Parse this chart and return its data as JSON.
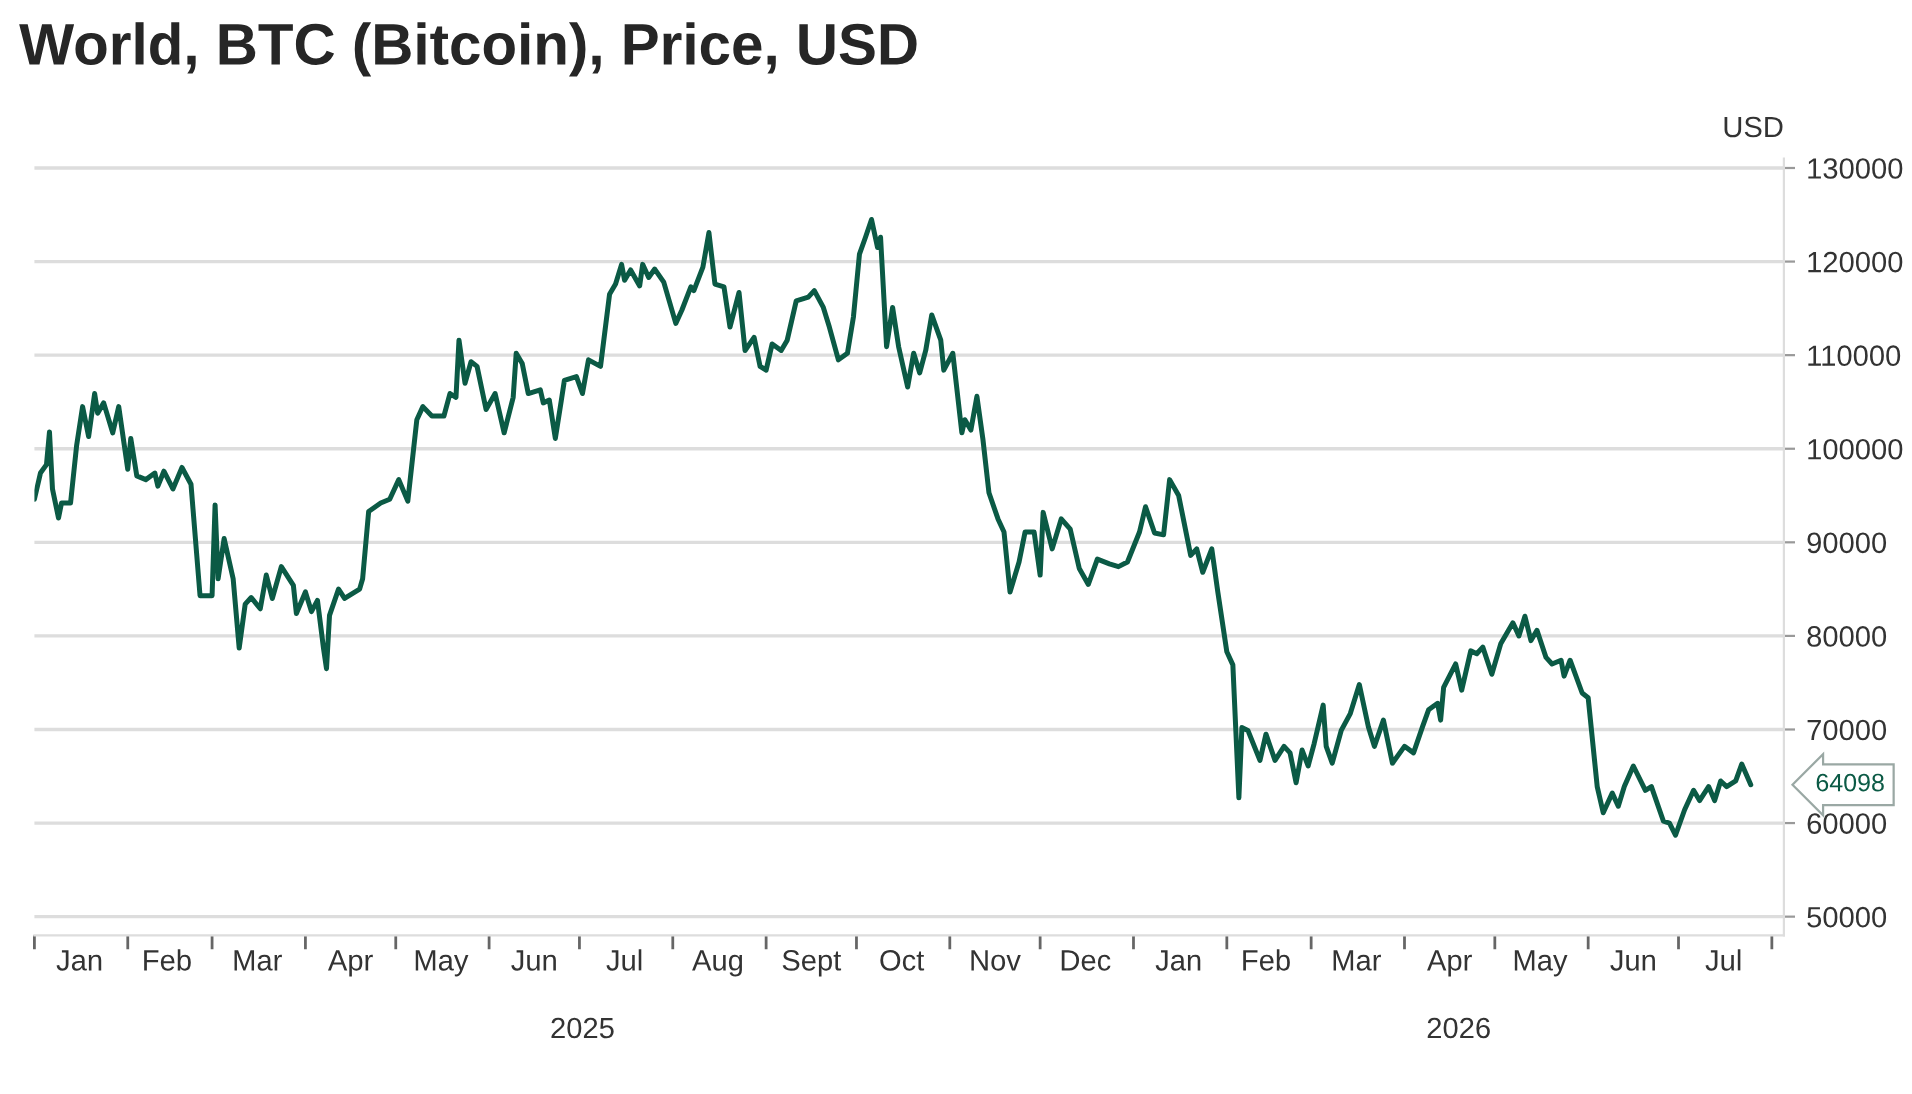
{
  "chart_data": {
    "type": "line",
    "title": "World, BTC (Bitcoin), Price, USD",
    "ylabel": "USD",
    "annotations": [
      "2025",
      "2026",
      "64098"
    ],
    "x": [
      "2025-01-01",
      "2025-01-03",
      "2025-01-05",
      "2025-01-06",
      "2025-01-07",
      "2025-01-09",
      "2025-01-10",
      "2025-01-13",
      "2025-01-15",
      "2025-01-17",
      "2025-01-19",
      "2025-01-21",
      "2025-01-22",
      "2025-01-24",
      "2025-01-27",
      "2025-01-29",
      "2025-02-01",
      "2025-02-02",
      "2025-02-04",
      "2025-02-07",
      "2025-02-10",
      "2025-02-11",
      "2025-02-13",
      "2025-02-16",
      "2025-02-19",
      "2025-02-22",
      "2025-02-25",
      "2025-03-01",
      "2025-03-02",
      "2025-03-03",
      "2025-03-05",
      "2025-03-08",
      "2025-03-10",
      "2025-03-12",
      "2025-03-14",
      "2025-03-17",
      "2025-03-19",
      "2025-03-21",
      "2025-03-24",
      "2025-03-28",
      "2025-03-29",
      "2025-04-01",
      "2025-04-03",
      "2025-04-05",
      "2025-04-07",
      "2025-04-08",
      "2025-04-09",
      "2025-04-12",
      "2025-04-14",
      "2025-04-19",
      "2025-04-20",
      "2025-04-22",
      "2025-04-26",
      "2025-04-29",
      "2025-05-02",
      "2025-05-05",
      "2025-05-08",
      "2025-05-10",
      "2025-05-13",
      "2025-05-17",
      "2025-05-19",
      "2025-05-21",
      "2025-05-22",
      "2025-05-24",
      "2025-05-26",
      "2025-05-28",
      "2025-05-31",
      "2025-06-03",
      "2025-06-06",
      "2025-06-09",
      "2025-06-10",
      "2025-06-12",
      "2025-06-14",
      "2025-06-18",
      "2025-06-19",
      "2025-06-21",
      "2025-06-23",
      "2025-06-25",
      "2025-06-26",
      "2025-06-30",
      "2025-07-02",
      "2025-07-04",
      "2025-07-08",
      "2025-07-11",
      "2025-07-13",
      "2025-07-15",
      "2025-07-16",
      "2025-07-18",
      "2025-07-21",
      "2025-07-22",
      "2025-07-24",
      "2025-07-26",
      "2025-07-29",
      "2025-08-02",
      "2025-08-04",
      "2025-08-07",
      "2025-08-08",
      "2025-08-11",
      "2025-08-13",
      "2025-08-15",
      "2025-08-18",
      "2025-08-20",
      "2025-08-23",
      "2025-08-25",
      "2025-08-28",
      "2025-08-30",
      "2025-09-01",
      "2025-09-03",
      "2025-09-06",
      "2025-09-08",
      "2025-09-11",
      "2025-09-15",
      "2025-09-17",
      "2025-09-20",
      "2025-09-22",
      "2025-09-25",
      "2025-09-28",
      "2025-09-30",
      "2025-10-02",
      "2025-10-04",
      "2025-10-06",
      "2025-10-08",
      "2025-10-09",
      "2025-10-11",
      "2025-10-13",
      "2025-10-15",
      "2025-10-18",
      "2025-10-20",
      "2025-10-22",
      "2025-10-24",
      "2025-10-26",
      "2025-10-29",
      "2025-10-30",
      "2025-11-02",
      "2025-11-05",
      "2025-11-06",
      "2025-11-08",
      "2025-11-10",
      "2025-11-12",
      "2025-11-14",
      "2025-11-17",
      "2025-11-19",
      "2025-11-21",
      "2025-11-24",
      "2025-11-26",
      "2025-11-29",
      "2025-12-01",
      "2025-12-02",
      "2025-12-05",
      "2025-12-08",
      "2025-12-11",
      "2025-12-14",
      "2025-12-17",
      "2025-12-20",
      "2025-12-24",
      "2025-12-27",
      "2025-12-30",
      "2026-01-03",
      "2026-01-05",
      "2026-01-08",
      "2026-01-11",
      "2026-01-13",
      "2026-01-16",
      "2026-01-20",
      "2026-01-22",
      "2026-01-24",
      "2026-01-27",
      "2026-01-29",
      "2026-02-01",
      "2026-02-03",
      "2026-02-05",
      "2026-02-06",
      "2026-02-08",
      "2026-02-12",
      "2026-02-14",
      "2026-02-17",
      "2026-02-20",
      "2026-02-22",
      "2026-02-24",
      "2026-02-26",
      "2026-02-28",
      "2026-03-02",
      "2026-03-05",
      "2026-03-06",
      "2026-03-08",
      "2026-03-11",
      "2026-03-14",
      "2026-03-17",
      "2026-03-20",
      "2026-03-22",
      "2026-03-25",
      "2026-03-28",
      "2026-04-01",
      "2026-04-04",
      "2026-04-07",
      "2026-04-09",
      "2026-04-12",
      "2026-04-13",
      "2026-04-14",
      "2026-04-18",
      "2026-04-20",
      "2026-04-23",
      "2026-04-25",
      "2026-04-27",
      "2026-04-30",
      "2026-05-03",
      "2026-05-07",
      "2026-05-09",
      "2026-05-11",
      "2026-05-13",
      "2026-05-15",
      "2026-05-18",
      "2026-05-20",
      "2026-05-23",
      "2026-05-24",
      "2026-05-26",
      "2026-05-30",
      "2026-06-01",
      "2026-06-04",
      "2026-06-06",
      "2026-06-09",
      "2026-06-11",
      "2026-06-13",
      "2026-06-16",
      "2026-06-20",
      "2026-06-22",
      "2026-06-26",
      "2026-06-28",
      "2026-06-30",
      "2026-07-03",
      "2026-07-06",
      "2026-07-08",
      "2026-07-11",
      "2026-07-13",
      "2026-07-15",
      "2026-07-17",
      "2026-07-20",
      "2026-07-22",
      "2026-07-25"
    ],
    "series": [
      {
        "color": "#0b5a45",
        "values": [
          94600,
          97400,
          98300,
          101800,
          95700,
          92600,
          94200,
          94200,
          100300,
          104500,
          101300,
          105900,
          103800,
          104900,
          101700,
          104500,
          97800,
          101100,
          97100,
          96700,
          97400,
          96000,
          97600,
          95700,
          98000,
          96200,
          84300,
          84300,
          94000,
          86100,
          90400,
          86100,
          78700,
          83400,
          84100,
          82900,
          86500,
          84000,
          87400,
          85400,
          82400,
          84700,
          82600,
          83800,
          78700,
          76500,
          82200,
          85000,
          84000,
          85000,
          86100,
          93300,
          94200,
          94600,
          96700,
          94400,
          103100,
          104500,
          103500,
          103500,
          105900,
          105500,
          111600,
          107000,
          109300,
          108800,
          104200,
          105900,
          101700,
          105500,
          110200,
          109100,
          105900,
          106300,
          104900,
          105200,
          101100,
          105200,
          107300,
          107700,
          105900,
          109500,
          108800,
          116500,
          117600,
          119700,
          118000,
          119100,
          117400,
          119700,
          118300,
          119200,
          117800,
          113400,
          114800,
          117300,
          116900,
          119400,
          123100,
          117600,
          117300,
          113000,
          116700,
          110500,
          111900,
          108800,
          108400,
          111200,
          110500,
          111600,
          115800,
          116200,
          116900,
          115100,
          113000,
          109500,
          110200,
          114100,
          120800,
          122600,
          124500,
          121500,
          122600,
          110900,
          115100,
          110900,
          106600,
          110200,
          108100,
          110500,
          114300,
          111600,
          108400,
          110200,
          101700,
          103100,
          102000,
          105600,
          101000,
          95300,
          92500,
          91100,
          84700,
          87900,
          91100,
          91100,
          86500,
          93200,
          89300,
          92500,
          91400,
          87200,
          85500,
          88200,
          87700,
          87400,
          87900,
          91100,
          93800,
          91000,
          90800,
          96700,
          95000,
          88600,
          89300,
          86800,
          89300,
          84700,
          78300,
          76900,
          62700,
          70200,
          69900,
          66700,
          69500,
          66700,
          68200,
          67500,
          64300,
          67800,
          66100,
          68500,
          72600,
          68200,
          66400,
          69900,
          71700,
          74800,
          70300,
          68200,
          71000,
          66400,
          68200,
          67500,
          70300,
          72100,
          72800,
          71000,
          74500,
          77000,
          74200,
          78400,
          78100,
          78800,
          75900,
          79200,
          81400,
          80000,
          82100,
          79500,
          80600,
          77700,
          77000,
          77400,
          75700,
          77400,
          73900,
          73400,
          63900,
          61100,
          63200,
          61800,
          63900,
          66100,
          63500,
          63900,
          60200,
          60000,
          58700,
          61400,
          63500,
          62400,
          63900,
          62400,
          64500,
          63900,
          64500,
          66300,
          64098
        ]
      }
    ],
    "xlim": [
      "2025-01-01",
      "2026-08-05"
    ],
    "xticks": [
      {
        "value": "2025-01-01",
        "label": null
      },
      {
        "value": "2025-02-01",
        "label": null
      },
      {
        "value": "2025-03-01",
        "label": null
      },
      {
        "value": "2025-04-01",
        "label": null
      },
      {
        "value": "2025-05-01",
        "label": null
      },
      {
        "value": "2025-06-01",
        "label": null
      },
      {
        "value": "2025-07-01",
        "label": null
      },
      {
        "value": "2025-08-01",
        "label": null
      },
      {
        "value": "2025-09-01",
        "label": null
      },
      {
        "value": "2025-10-01",
        "label": null
      },
      {
        "value": "2025-11-01",
        "label": null
      },
      {
        "value": "2025-12-01",
        "label": null
      },
      {
        "value": "2026-01-01",
        "label": null
      },
      {
        "value": "2026-02-01",
        "label": null
      },
      {
        "value": "2026-03-01",
        "label": null
      },
      {
        "value": "2026-04-01",
        "label": null
      },
      {
        "value": "2026-05-01",
        "label": null
      },
      {
        "value": "2026-06-01",
        "label": null
      },
      {
        "value": "2026-07-01",
        "label": null
      },
      {
        "value": "2026-08-01",
        "label": null
      },
      {
        "value": "2025-01-16",
        "label": "Jan"
      },
      {
        "value": "2025-02-14",
        "label": "Feb"
      },
      {
        "value": "2025-03-16",
        "label": "Mar"
      },
      {
        "value": "2025-04-16",
        "label": "Apr"
      },
      {
        "value": "2025-05-16",
        "label": "May"
      },
      {
        "value": "2025-06-16",
        "label": "Jun"
      },
      {
        "value": "2025-07-16",
        "label": "Jul"
      },
      {
        "value": "2025-08-16",
        "label": "Aug"
      },
      {
        "value": "2025-09-16",
        "label": "Sept"
      },
      {
        "value": "2025-10-16",
        "label": "Oct"
      },
      {
        "value": "2025-11-16",
        "label": "Nov"
      },
      {
        "value": "2025-12-16",
        "label": "Dec"
      },
      {
        "value": "2026-01-16",
        "label": "Jan"
      },
      {
        "value": "2026-02-14",
        "label": "Feb"
      },
      {
        "value": "2026-03-16",
        "label": "Mar"
      },
      {
        "value": "2026-04-16",
        "label": "Apr"
      },
      {
        "value": "2026-05-16",
        "label": "May"
      },
      {
        "value": "2026-06-16",
        "label": "Jun"
      },
      {
        "value": "2026-07-16",
        "label": "Jul"
      }
    ],
    "ylim": [
      48000,
      131000
    ],
    "yticks": [
      50000,
      60000,
      70000,
      80000,
      90000,
      100000,
      110000,
      120000,
      130000
    ],
    "grid": "y",
    "legend": false
  }
}
